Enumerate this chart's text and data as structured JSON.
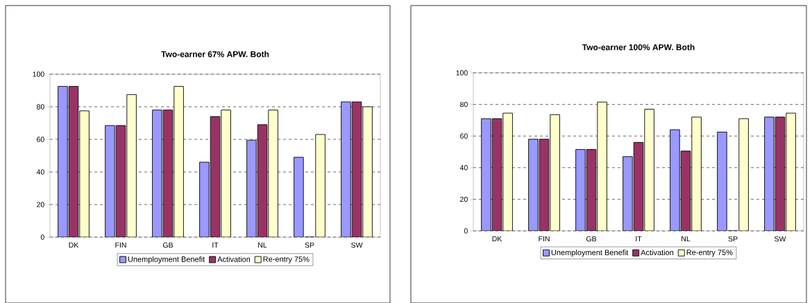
{
  "chart_data": [
    {
      "type": "bar",
      "title": "Two-earner 67% APW. Both",
      "categories": [
        "DK",
        "FIN",
        "GB",
        "IT",
        "NL",
        "SP",
        "SW"
      ],
      "series": [
        {
          "name": "Unemployment Benefit",
          "color": "#9999ff",
          "values": [
            92.5,
            68.5,
            78,
            46,
            59.5,
            49,
            83
          ]
        },
        {
          "name": "Activation",
          "color": "#993366",
          "values": [
            92.5,
            68.5,
            78,
            74,
            69,
            0,
            83
          ]
        },
        {
          "name": "Re-entry 75%",
          "color": "#ffffcc",
          "values": [
            77.5,
            87.5,
            92.5,
            78,
            78,
            63,
            80
          ]
        }
      ],
      "ylim": [
        0,
        100
      ],
      "yticks": [
        0,
        20,
        40,
        60,
        80,
        100
      ],
      "grid": "y",
      "legend": "bottom"
    },
    {
      "type": "bar",
      "title": "Two-earner 100% APW. Both",
      "categories": [
        "DK",
        "FIN",
        "GB",
        "IT",
        "NL",
        "SP",
        "SW"
      ],
      "series": [
        {
          "name": "Unemployment Benefit",
          "color": "#9999ff",
          "values": [
            71,
            58,
            51.5,
            47,
            64,
            62.5,
            72
          ]
        },
        {
          "name": "Activation",
          "color": "#993366",
          "values": [
            71,
            58,
            51.5,
            56,
            50.5,
            0,
            72
          ]
        },
        {
          "name": "Re-entry 75%",
          "color": "#ffffcc",
          "values": [
            74.5,
            73.5,
            81.5,
            77,
            72,
            71,
            74.5
          ]
        }
      ],
      "ylim": [
        0,
        100
      ],
      "yticks": [
        0,
        20,
        40,
        60,
        80,
        100
      ],
      "grid": "y",
      "legend": "bottom"
    }
  ]
}
